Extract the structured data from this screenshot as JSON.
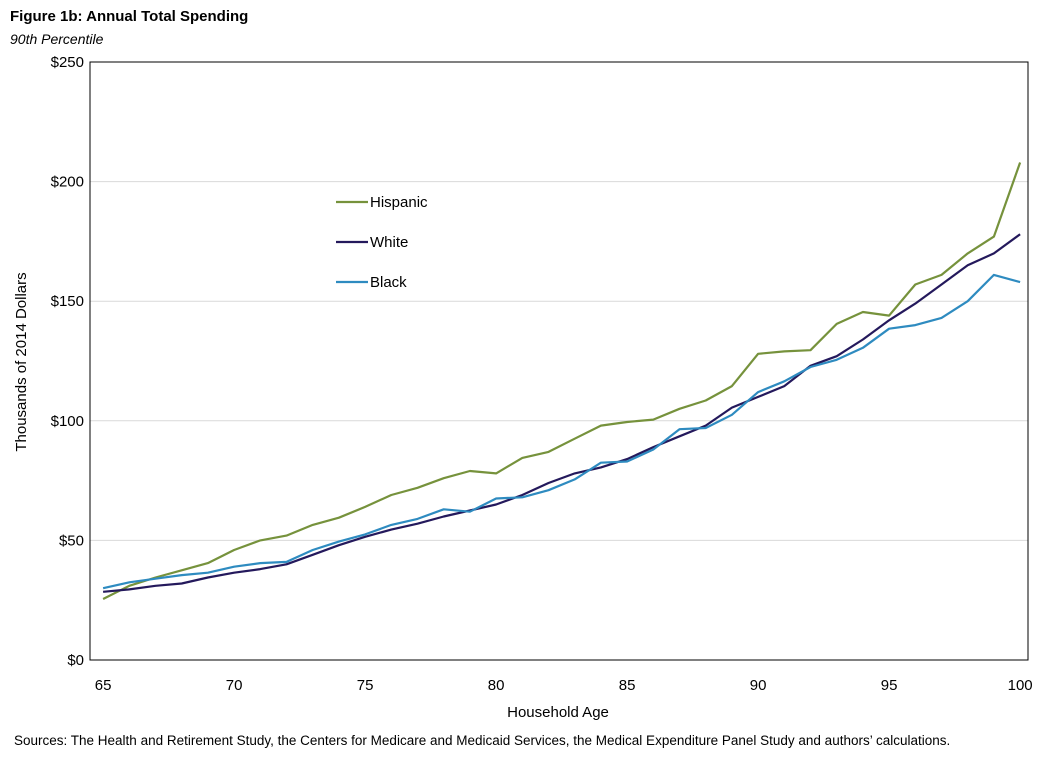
{
  "header": {
    "title": "Figure 1b: Annual Total Spending",
    "subtitle": "90th Percentile"
  },
  "footer": {
    "source": "Sources: The Health and Retirement Study, the Centers for Medicare and Medicaid Services, the Medical Expenditure Panel Study and authors’ calculations."
  },
  "chart_data": {
    "type": "line",
    "title": "Figure 1b: Annual Total Spending",
    "subtitle": "90th Percentile",
    "xlabel": "Household Age",
    "ylabel": "Thousands of 2014 Dollars",
    "xlim": [
      64.5,
      100.3
    ],
    "ylim": [
      0,
      250
    ],
    "x_ticks": [
      65,
      70,
      75,
      80,
      85,
      90,
      95,
      100
    ],
    "x_tick_labels": [
      "65",
      "70",
      "75",
      "80",
      "85",
      "90",
      "95",
      "100"
    ],
    "y_ticks": [
      0,
      50,
      100,
      150,
      200,
      250
    ],
    "y_tick_labels": [
      "$0",
      "$50",
      "$100",
      "$150",
      "$200",
      "$250"
    ],
    "grid": "horizontal",
    "legend_position": "upper-left",
    "x": [
      65,
      66,
      67,
      68,
      69,
      70,
      71,
      72,
      73,
      74,
      75,
      76,
      77,
      78,
      79,
      80,
      81,
      82,
      83,
      84,
      85,
      86,
      87,
      88,
      89,
      90,
      91,
      92,
      93,
      94,
      95,
      96,
      97,
      98,
      99,
      100
    ],
    "series": [
      {
        "name": "Hispanic",
        "color": "#76923c",
        "values": [
          25.5,
          31,
          34.5,
          37.5,
          40.5,
          46,
          50,
          52,
          56.5,
          59.5,
          64,
          69,
          72,
          76,
          79,
          78,
          84.5,
          87,
          92.5,
          98,
          99.5,
          100.5,
          105,
          108.5,
          114.5,
          128,
          129,
          129.5,
          140.5,
          145.5,
          144,
          157,
          161,
          170,
          177,
          208
        ]
      },
      {
        "name": "White",
        "color": "#24195c",
        "values": [
          28.5,
          29.5,
          31,
          32,
          34.5,
          36.5,
          38,
          40,
          44,
          48,
          51.5,
          54.5,
          57,
          60,
          62.5,
          65,
          69,
          74,
          78,
          80.5,
          84,
          89,
          93.5,
          98,
          105.5,
          110,
          114.5,
          123,
          127,
          134,
          142,
          149,
          157,
          165,
          170,
          178
        ]
      },
      {
        "name": "Black",
        "color": "#2e8bc0",
        "values": [
          30,
          32.5,
          34,
          35.5,
          36.5,
          39,
          40.5,
          41,
          46,
          49.5,
          52.5,
          56.5,
          59,
          63,
          62,
          67.5,
          68,
          71,
          75.5,
          82.5,
          83,
          88,
          96.5,
          97,
          102.5,
          112,
          116.5,
          122.5,
          125.5,
          130.5,
          138.5,
          140,
          143,
          150,
          161,
          158
        ]
      }
    ]
  }
}
